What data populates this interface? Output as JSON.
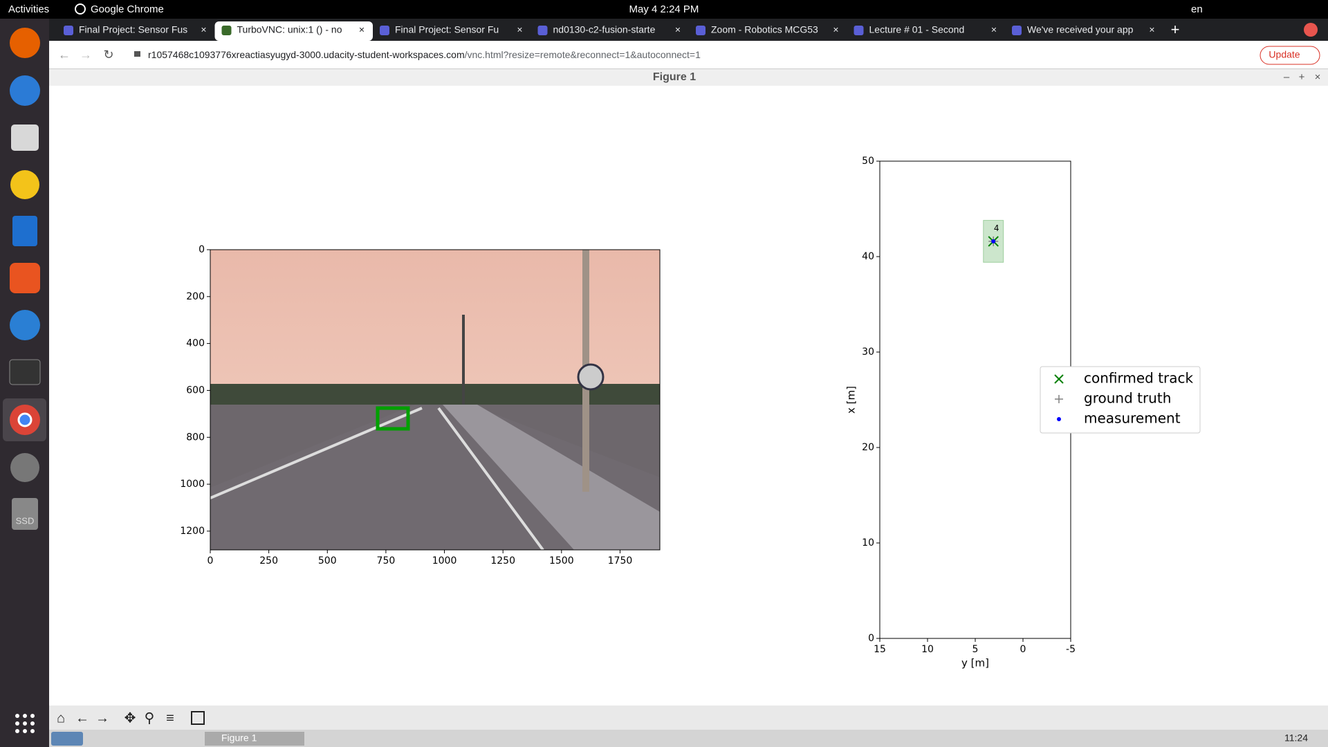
{
  "top_bar": {
    "activities": "Activities",
    "app": "Google Chrome",
    "clock": "May 4  2:24 PM",
    "language": "en"
  },
  "tabs": [
    "Final Project: Sensor Fus",
    "TurboVNC: unix:1 () - no",
    "Final Project: Sensor Fu",
    "nd0130-c2-fusion-starte",
    "Zoom - Robotics MCG53",
    "Lecture # 01 - Second",
    "We've received your app"
  ],
  "address_bar": {
    "url_host": "r1057468c1093776xreactiasyugyd-3000.udacity-student-workspaces.com",
    "url_path": "/vnc.html?resize=remote&reconnect=1&autoconnect=1",
    "update_button": "Update"
  },
  "dock": {
    "ssd_label": "SSD"
  },
  "window": {
    "title": "Figure 1"
  },
  "image_plot": {
    "xlim": [
      0,
      1920
    ],
    "ylim": [
      1280,
      0
    ],
    "xticks": [
      0,
      250,
      500,
      750,
      1000,
      1250,
      1500,
      1750
    ],
    "yticks": [
      0,
      200,
      400,
      600,
      800,
      1000,
      1200
    ]
  },
  "tracking_plot": {
    "xlabel": "y [m]",
    "ylabel": "x [m]",
    "xlim": [
      15,
      -5
    ],
    "ylim": [
      0,
      50
    ],
    "xticks": [
      15,
      10,
      5,
      0,
      -5
    ],
    "yticks": [
      0,
      10,
      20,
      30,
      40,
      50
    ],
    "track": {
      "id": 4,
      "y": 3.1,
      "x": 41.6,
      "width": 2.1,
      "length": 4.4,
      "color": "#008000"
    },
    "ground_truth": {
      "y": 3.1,
      "x": 41.6,
      "color": "#808080"
    },
    "measurement": {
      "y": 3.1,
      "x": 41.6,
      "color": "#0000ff"
    },
    "legend": [
      {
        "label": "confirmed track",
        "marker": "x",
        "color": "#008000"
      },
      {
        "label": "ground truth",
        "marker": "+",
        "color": "#808080"
      },
      {
        "label": "measurement",
        "marker": ".",
        "color": "#0000ff"
      }
    ]
  },
  "taskbar": {
    "window": "Figure 1",
    "clock": "11:24"
  }
}
